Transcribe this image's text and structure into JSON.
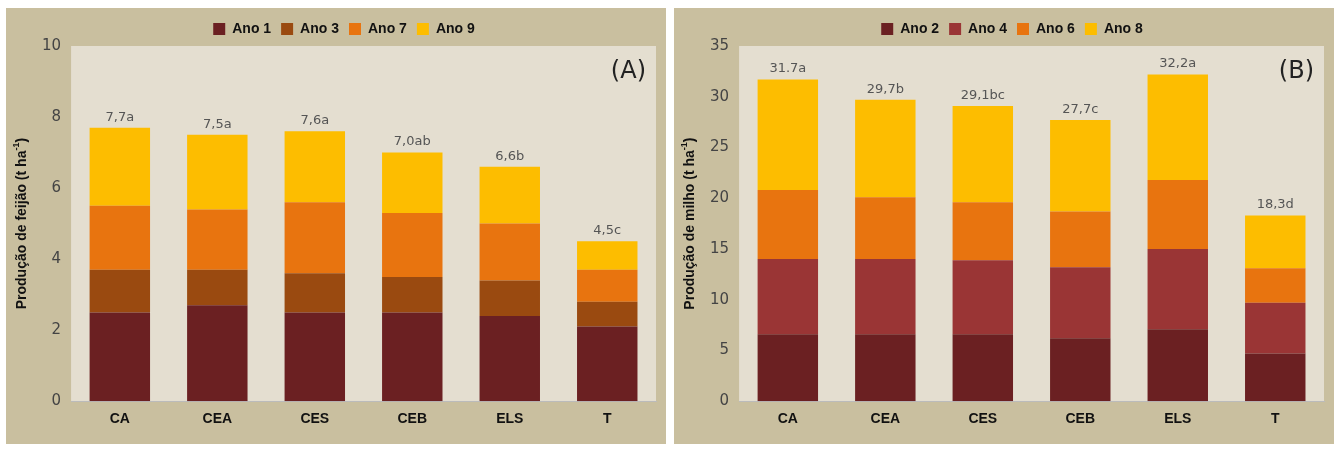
{
  "chart_data": [
    {
      "type": "bar",
      "stacked": true,
      "ylabel": "Produção de feijão (t ha$^{-1}$)",
      "categories": [
        "CA",
        "CEA",
        "CES",
        "CEB",
        "ELS",
        "T"
      ],
      "ylim": [
        0,
        10
      ],
      "yticks": [
        0,
        2,
        4,
        6,
        8,
        10
      ],
      "legend": "top",
      "annotations": [
        "(A)"
      ],
      "totals": [
        "7,7a",
        "7,5a",
        "7,6a",
        "7,0ab",
        "6,6b",
        "4,5c"
      ],
      "series": [
        {
          "name": "Ano 1",
          "color": "#6b2022",
          "values": [
            2.5,
            2.7,
            2.5,
            2.5,
            2.4,
            2.1
          ]
        },
        {
          "name": "Ano 3",
          "color": "#9a4a10",
          "values": [
            1.2,
            1.0,
            1.1,
            1.0,
            1.0,
            0.7
          ]
        },
        {
          "name": "Ano 7",
          "color": "#e8740f",
          "values": [
            1.8,
            1.7,
            2.0,
            1.8,
            1.6,
            0.9
          ]
        },
        {
          "name": "Ano 9",
          "color": "#fdbd00",
          "values": [
            2.2,
            2.1,
            2.0,
            1.7,
            1.6,
            0.8
          ]
        }
      ]
    },
    {
      "type": "bar",
      "stacked": true,
      "ylabel": "Produção de milho (t ha$^{-1}$)",
      "categories": [
        "CA",
        "CEA",
        "CES",
        "CEB",
        "ELS",
        "T"
      ],
      "ylim": [
        0,
        35
      ],
      "yticks": [
        0,
        5,
        10,
        15,
        20,
        25,
        30,
        35
      ],
      "legend": "top",
      "annotations": [
        "(B)"
      ],
      "totals": [
        "31.7a",
        "29,7b",
        "29,1bc",
        "27,7c",
        "32,2a",
        "18,3d"
      ],
      "series": [
        {
          "name": "Ano 2",
          "color": "#6b2022",
          "values": [
            6.6,
            6.6,
            6.6,
            6.2,
            7.1,
            4.7
          ]
        },
        {
          "name": "Ano 4",
          "color": "#9a3535",
          "values": [
            7.4,
            7.4,
            7.3,
            7.0,
            7.9,
            5.0
          ]
        },
        {
          "name": "Ano 6",
          "color": "#e8740f",
          "values": [
            6.8,
            6.1,
            5.7,
            5.5,
            6.8,
            3.4
          ]
        },
        {
          "name": "Ano 8",
          "color": "#fdbd00",
          "values": [
            10.9,
            9.6,
            9.5,
            9.0,
            10.4,
            5.2
          ]
        }
      ]
    }
  ]
}
